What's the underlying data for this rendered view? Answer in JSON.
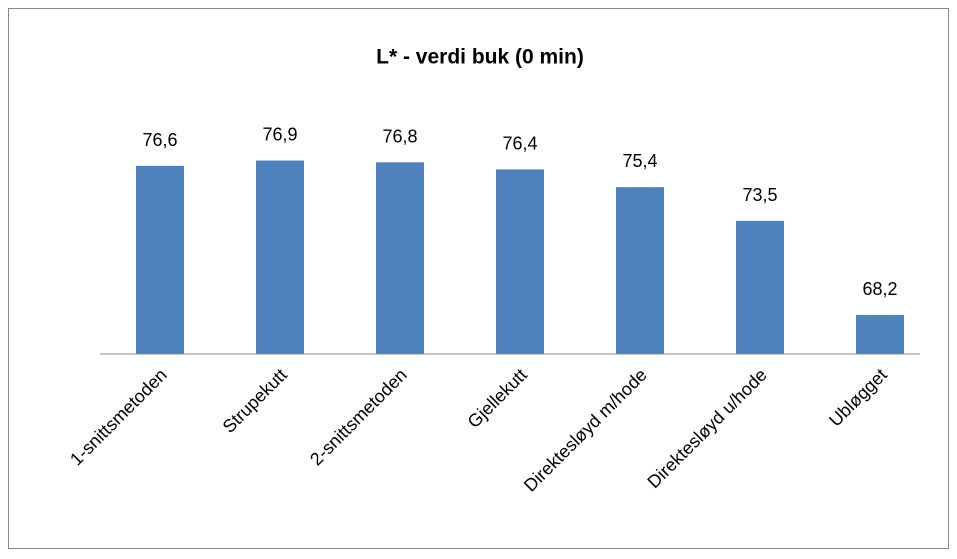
{
  "chart_data": {
    "type": "bar",
    "title": "L* - verdi buk (0 min)",
    "categories": [
      "1-snittsmetoden",
      "Strupekutt",
      "2-snittsmetoden",
      "Gjellekutt",
      "Direktesløyd m/hode",
      "Direktesløyd u/hode",
      "Ubløgget"
    ],
    "values": [
      76.6,
      76.9,
      76.8,
      76.4,
      75.4,
      73.5,
      68.2
    ],
    "value_labels": [
      "76,6",
      "76,9",
      "76,8",
      "76,4",
      "75,4",
      "73,5",
      "68,2"
    ],
    "color": "#4f81bd",
    "ylim": [
      66,
      78
    ]
  }
}
